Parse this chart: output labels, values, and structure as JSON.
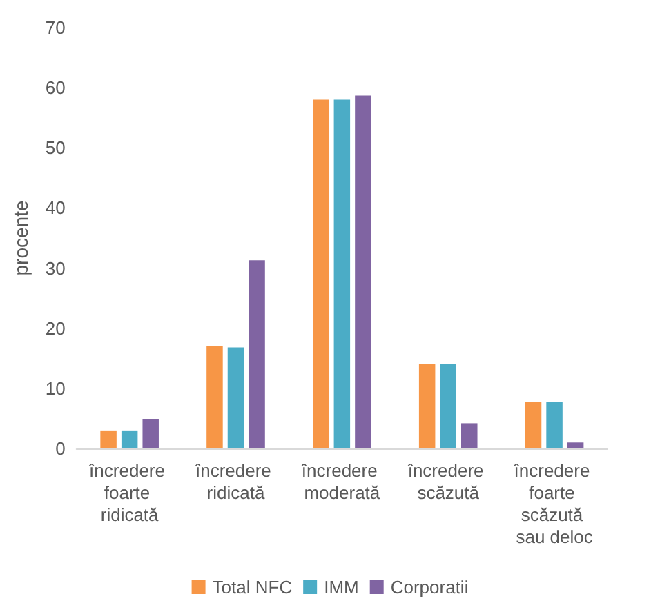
{
  "chart_data": {
    "type": "bar",
    "ylabel": "procente",
    "categories": [
      "încredere foarte ridicată",
      "încredere ridicată",
      "încredere moderată",
      "încredere scăzută",
      "încredere foarte scăzută sau deloc"
    ],
    "series": [
      {
        "name": "Total NFC",
        "color": "#f79646",
        "values": [
          3.0,
          17.0,
          58.0,
          14.1,
          7.7
        ]
      },
      {
        "name": "IMM",
        "color": "#4bacc6",
        "values": [
          3.0,
          16.8,
          58.0,
          14.1,
          7.7
        ]
      },
      {
        "name": "Corporatii",
        "color": "#8064a2",
        "values": [
          4.9,
          31.3,
          58.7,
          4.2,
          1.0
        ]
      }
    ],
    "ylim": [
      0,
      70
    ],
    "yticks": [
      0,
      10,
      20,
      30,
      40,
      50,
      60,
      70
    ],
    "grid": false,
    "legend": "bottom"
  }
}
